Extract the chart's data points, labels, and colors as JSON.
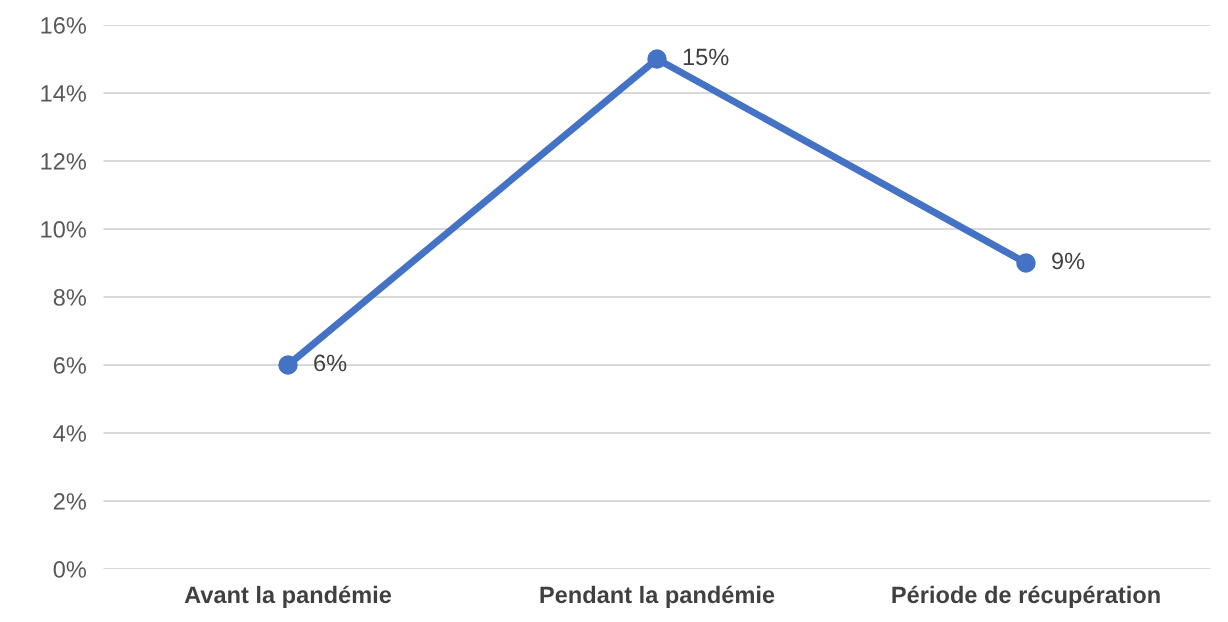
{
  "chart_data": {
    "type": "line",
    "categories": [
      "Avant la pandémie",
      "Pendant la pandémie",
      "Période de récupération"
    ],
    "series": [
      {
        "color": "#4472c4",
        "values": [
          6,
          15,
          9
        ],
        "value_labels": [
          "6%",
          "15%",
          "9%"
        ]
      }
    ],
    "ylim": [
      0,
      16
    ],
    "yticks": [
      {
        "value": 0,
        "label": "0%"
      },
      {
        "value": 2,
        "label": "2%"
      },
      {
        "value": 4,
        "label": "4%"
      },
      {
        "value": 6,
        "label": "6%"
      },
      {
        "value": 8,
        "label": "8%"
      },
      {
        "value": 10,
        "label": "10%"
      },
      {
        "value": 12,
        "label": "12%"
      },
      {
        "value": 14,
        "label": "14%"
      },
      {
        "value": 16,
        "label": "16%"
      }
    ],
    "grid": "y",
    "marker": "circle",
    "line_style": "solid"
  }
}
